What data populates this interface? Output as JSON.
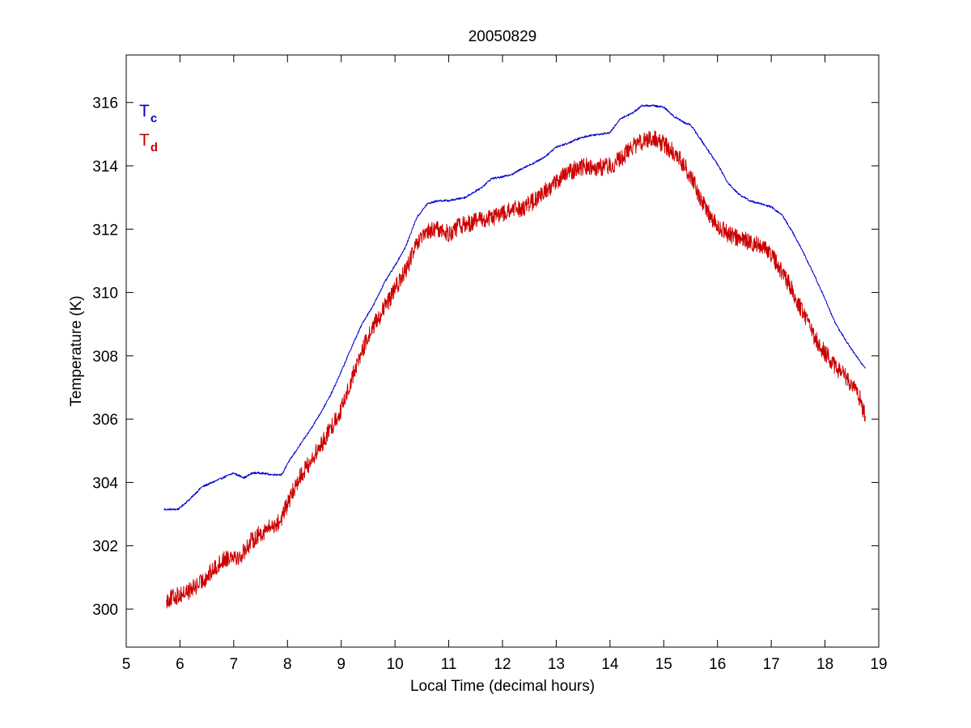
{
  "chart_data": {
    "type": "line",
    "title": "20050829",
    "xlabel": "Local Time (decimal hours)",
    "ylabel": "Temperature (K)",
    "xlim": [
      5,
      19
    ],
    "ylim": [
      298.8,
      317.5
    ],
    "xticks": [
      5,
      6,
      7,
      8,
      9,
      10,
      11,
      12,
      13,
      14,
      15,
      16,
      17,
      18,
      19
    ],
    "yticks": [
      300,
      302,
      304,
      306,
      308,
      310,
      312,
      314,
      316
    ],
    "grid": false,
    "legend_position": "top-left",
    "series": [
      {
        "name": "T",
        "subscript": "c",
        "color": "#0000cc",
        "noise": 0.03,
        "x": [
          5.7,
          5.95,
          6.0,
          6.2,
          6.4,
          6.6,
          6.8,
          7.0,
          7.05,
          7.2,
          7.35,
          7.5,
          7.7,
          7.9,
          8.0,
          8.2,
          8.4,
          8.6,
          8.8,
          9.0,
          9.2,
          9.4,
          9.6,
          9.8,
          10.0,
          10.2,
          10.4,
          10.6,
          10.8,
          11.0,
          11.3,
          11.6,
          11.8,
          12.0,
          12.2,
          12.4,
          12.6,
          12.8,
          13.0,
          13.2,
          13.4,
          13.6,
          13.8,
          14.0,
          14.2,
          14.4,
          14.6,
          14.8,
          15.0,
          15.2,
          15.4,
          15.5,
          15.6,
          15.8,
          16.0,
          16.2,
          16.4,
          16.6,
          16.8,
          17.0,
          17.2,
          17.4,
          17.6,
          17.8,
          18.0,
          18.2,
          18.4,
          18.6,
          18.75
        ],
        "y": [
          303.15,
          303.15,
          303.2,
          303.5,
          303.85,
          304.0,
          304.15,
          304.3,
          304.25,
          304.15,
          304.3,
          304.3,
          304.25,
          304.25,
          304.6,
          305.1,
          305.6,
          306.15,
          306.75,
          307.5,
          308.3,
          309.05,
          309.6,
          310.3,
          310.85,
          311.45,
          312.35,
          312.8,
          312.9,
          312.9,
          313.0,
          313.3,
          313.6,
          313.65,
          313.75,
          313.95,
          314.1,
          314.3,
          314.6,
          314.7,
          314.85,
          314.95,
          315.0,
          315.05,
          315.5,
          315.65,
          315.9,
          315.9,
          315.85,
          315.55,
          315.35,
          315.3,
          315.05,
          314.55,
          314.05,
          313.45,
          313.1,
          312.9,
          312.8,
          312.7,
          312.45,
          311.9,
          311.25,
          310.55,
          309.8,
          309.0,
          308.45,
          307.95,
          307.6
        ]
      },
      {
        "name": "T",
        "subscript": "d",
        "color": "#cc0000",
        "noise": 0.28,
        "x": [
          5.75,
          6.0,
          6.2,
          6.4,
          6.6,
          6.8,
          7.0,
          7.1,
          7.3,
          7.5,
          7.7,
          7.85,
          8.0,
          8.2,
          8.4,
          8.6,
          8.8,
          9.0,
          9.2,
          9.4,
          9.6,
          9.8,
          10.0,
          10.2,
          10.4,
          10.6,
          10.8,
          11.0,
          11.2,
          11.4,
          11.6,
          11.8,
          12.0,
          12.2,
          12.4,
          12.6,
          12.8,
          13.0,
          13.2,
          13.4,
          13.6,
          13.8,
          14.0,
          14.2,
          14.4,
          14.6,
          14.8,
          15.0,
          15.2,
          15.4,
          15.6,
          15.8,
          16.0,
          16.2,
          16.4,
          16.6,
          16.8,
          17.0,
          17.2,
          17.4,
          17.6,
          17.8,
          18.0,
          18.2,
          18.4,
          18.6,
          18.75
        ],
        "y": [
          300.3,
          300.45,
          300.6,
          300.85,
          301.2,
          301.55,
          301.75,
          301.6,
          302.1,
          302.4,
          302.6,
          302.75,
          303.3,
          304.1,
          304.6,
          305.1,
          305.7,
          306.3,
          307.3,
          308.2,
          308.95,
          309.5,
          310.1,
          310.7,
          311.5,
          311.9,
          312.0,
          311.85,
          312.1,
          312.2,
          312.3,
          312.35,
          312.5,
          312.6,
          312.7,
          312.9,
          313.2,
          313.5,
          313.75,
          313.95,
          314.0,
          313.95,
          314.0,
          314.2,
          314.6,
          314.75,
          314.85,
          314.7,
          314.4,
          314.0,
          313.3,
          312.6,
          312.1,
          311.85,
          311.7,
          311.6,
          311.5,
          311.2,
          310.65,
          310.05,
          309.3,
          308.6,
          308.1,
          307.65,
          307.3,
          306.9,
          306.1
        ]
      }
    ]
  }
}
